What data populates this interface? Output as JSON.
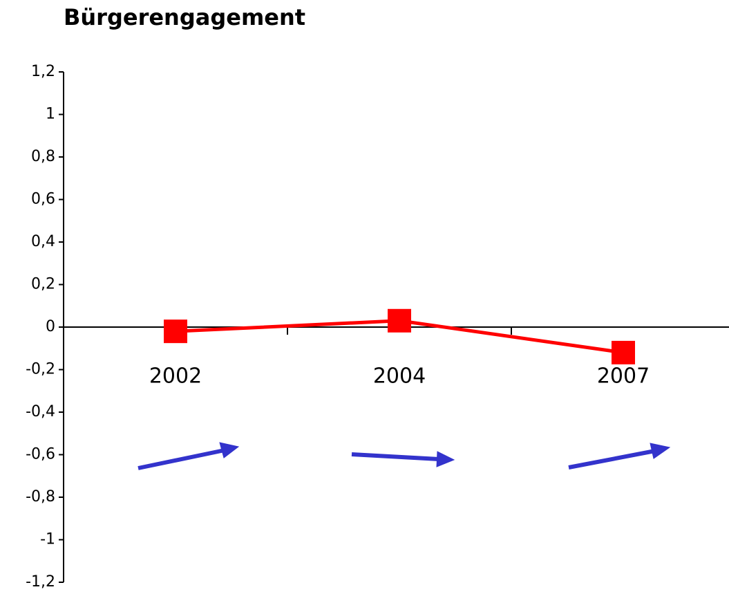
{
  "chart_data": {
    "type": "line",
    "title": "Bürgerengagement",
    "categories": [
      "2002",
      "2004",
      "2007"
    ],
    "series": [
      {
        "name": "Bürgerengagement",
        "color": "#ff0000",
        "values": [
          -0.02,
          0.03,
          -0.12
        ]
      }
    ],
    "ylim": [
      -1.2,
      1.2
    ],
    "yticks": [
      {
        "value": -1.2,
        "label": "-1,2"
      },
      -1,
      {
        "value": -0.8,
        "label": "-0,8"
      },
      {
        "value": -0.6,
        "label": "-0,6"
      },
      {
        "value": -0.4,
        "label": "-0,4"
      },
      {
        "value": -0.2,
        "label": "-0,2"
      },
      0,
      {
        "value": 0.2,
        "label": "0,2"
      },
      {
        "value": 0.4,
        "label": "0,4"
      },
      {
        "value": 0.6,
        "label": "0,6"
      },
      {
        "value": 0.8,
        "label": "0,8"
      },
      1,
      {
        "value": 1.2,
        "label": "1,2"
      }
    ],
    "grid": false
  }
}
